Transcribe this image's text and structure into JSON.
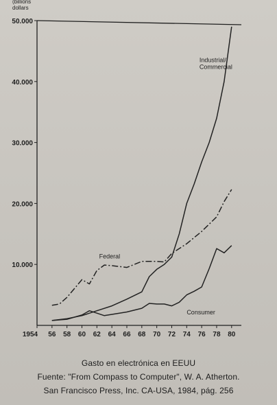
{
  "chart_data": {
    "type": "line",
    "title": "",
    "unit_label": [
      "(billions",
      "dollars"
    ],
    "xlabel": "",
    "ylabel": "",
    "x_ticks": [
      "1954",
      "56",
      "58",
      "60",
      "62",
      "64",
      "66",
      "68",
      "70",
      "72",
      "74",
      "76",
      "78",
      "80"
    ],
    "xlim": [
      1954,
      1981.3
    ],
    "y_ticks": [
      "10.000",
      "20.000",
      "30.000",
      "40.000",
      "50.000"
    ],
    "ylim": [
      0,
      50000
    ],
    "grid": false,
    "series": [
      {
        "name": "Industrial/ Commercial",
        "label_lines": [
          "Industrial/",
          "Commercial"
        ],
        "style": "solid",
        "color": "#222222",
        "points": [
          [
            1956,
            800
          ],
          [
            1958,
            1100
          ],
          [
            1960,
            1600
          ],
          [
            1962,
            2400
          ],
          [
            1964,
            3200
          ],
          [
            1966,
            4300
          ],
          [
            1968,
            5500
          ],
          [
            1969,
            8000
          ],
          [
            1970,
            9200
          ],
          [
            1971,
            10000
          ],
          [
            1972,
            11200
          ],
          [
            1973,
            15000
          ],
          [
            1974,
            20000
          ],
          [
            1975,
            23200
          ],
          [
            1976,
            26800
          ],
          [
            1977,
            30000
          ],
          [
            1978,
            34000
          ],
          [
            1979,
            40000
          ],
          [
            1980,
            49000
          ]
        ]
      },
      {
        "name": "Federal",
        "label_lines": [
          "Federal"
        ],
        "style": "dash-dot",
        "color": "#222222",
        "points": [
          [
            1956,
            3300
          ],
          [
            1957,
            3500
          ],
          [
            1958,
            4600
          ],
          [
            1960,
            7500
          ],
          [
            1961,
            6800
          ],
          [
            1962,
            9000
          ],
          [
            1963,
            9900
          ],
          [
            1964,
            9800
          ],
          [
            1966,
            9500
          ],
          [
            1968,
            10500
          ],
          [
            1970,
            10500
          ],
          [
            1971,
            10400
          ],
          [
            1972,
            11800
          ],
          [
            1974,
            13400
          ],
          [
            1976,
            15400
          ],
          [
            1978,
            17800
          ],
          [
            1979,
            20300
          ],
          [
            1980,
            22300
          ]
        ]
      },
      {
        "name": "Consumer",
        "label_lines": [
          "Consumer"
        ],
        "style": "solid",
        "color": "#222222",
        "points": [
          [
            1956,
            800
          ],
          [
            1958,
            1000
          ],
          [
            1960,
            1700
          ],
          [
            1961,
            2400
          ],
          [
            1962,
            2000
          ],
          [
            1963,
            1600
          ],
          [
            1964,
            1800
          ],
          [
            1966,
            2200
          ],
          [
            1968,
            2800
          ],
          [
            1969,
            3600
          ],
          [
            1970,
            3500
          ],
          [
            1971,
            3500
          ],
          [
            1972,
            3200
          ],
          [
            1973,
            3800
          ],
          [
            1974,
            5000
          ],
          [
            1975,
            5600
          ],
          [
            1976,
            6300
          ],
          [
            1977,
            9300
          ],
          [
            1978,
            12600
          ],
          [
            1979,
            11900
          ],
          [
            1980,
            13100
          ]
        ]
      }
    ],
    "legend": "inline"
  },
  "caption": {
    "title": "Gasto en electrónica en EEUU",
    "source": "Fuente: \"From Compass to Computer\", W. A. Atherton.",
    "publisher": "San Francisco Press, Inc. CA-USA, 1984, pág. 256"
  }
}
